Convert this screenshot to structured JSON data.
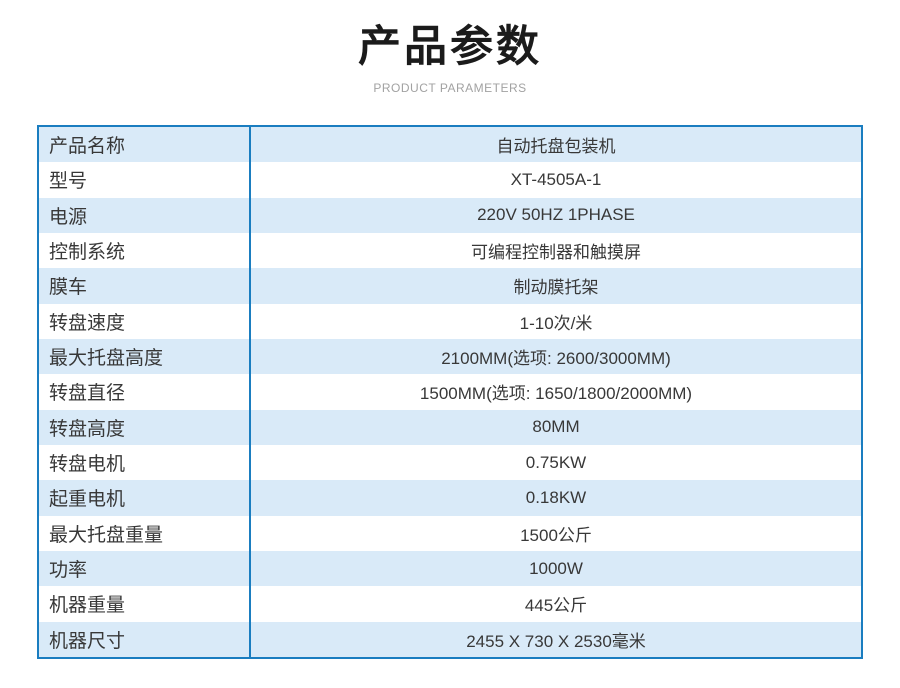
{
  "header": {
    "title": "产品参数",
    "subtitle": "PRODUCT PARAMETERS"
  },
  "table": {
    "rows": [
      {
        "label": "产品名称",
        "value": "自动托盘包装机"
      },
      {
        "label": "型号",
        "value": "XT-4505A-1"
      },
      {
        "label": "电源",
        "value": "220V 50HZ 1PHASE"
      },
      {
        "label": "控制系统",
        "value": "可编程控制器和触摸屏"
      },
      {
        "label": "膜车",
        "value": "制动膜托架"
      },
      {
        "label": "转盘速度",
        "value": "1-10次/米"
      },
      {
        "label": "最大托盘高度",
        "value": "2100MM(选项: 2600/3000MM)"
      },
      {
        "label": "转盘直径",
        "value": "1500MM(选项: 1650/1800/2000MM)"
      },
      {
        "label": "转盘高度",
        "value": "80MM"
      },
      {
        "label": "转盘电机",
        "value": "0.75KW"
      },
      {
        "label": "起重电机",
        "value": "0.18KW"
      },
      {
        "label": "最大托盘重量",
        "value": "1500公斤"
      },
      {
        "label": "功率",
        "value": "1000W"
      },
      {
        "label": "机器重量",
        "value": "445公斤"
      },
      {
        "label": "机器尺寸",
        "value": "2455 X 730 X 2530毫米"
      }
    ]
  },
  "colors": {
    "border_blue": "#1a7dc0",
    "row_alt_blue": "#d9eaf8",
    "subtitle_gray": "#a2a2a2",
    "text_dark": "#383838"
  }
}
